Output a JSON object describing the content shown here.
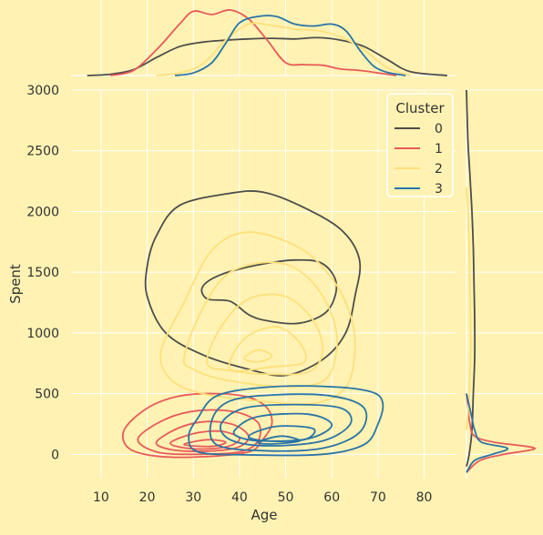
{
  "chart_data": {
    "type": "kde-jointplot",
    "xlabel": "Age",
    "ylabel": "Spent",
    "xticks": [
      10,
      20,
      30,
      40,
      50,
      60,
      70,
      80
    ],
    "yticks": [
      0,
      500,
      1000,
      1500,
      2000,
      2500,
      3000
    ],
    "xlim": [
      3.5,
      87
    ],
    "ylim": [
      -200,
      3000
    ],
    "grid": true,
    "legend": {
      "title": "Cluster",
      "placement": "top-right",
      "entries": [
        "0",
        "1",
        "2",
        "3"
      ]
    },
    "series": [
      {
        "name": "0",
        "color": "#4D4D4D",
        "contours": [
          [
            [
              22,
              1800
            ],
            [
              27,
              2050
            ],
            [
              38,
              2150
            ],
            [
              45,
              2160
            ],
            [
              53,
              2050
            ],
            [
              62,
              1850
            ],
            [
              66,
              1600
            ],
            [
              65,
              1300
            ],
            [
              63,
              1000
            ],
            [
              58,
              780
            ],
            [
              50,
              650
            ],
            [
              42,
              700
            ],
            [
              32,
              820
            ],
            [
              24,
              1000
            ],
            [
              20,
              1300
            ],
            [
              20,
              1550
            ]
          ],
          [
            [
              32,
              1380
            ],
            [
              36,
              1480
            ],
            [
              44,
              1560
            ],
            [
              52,
              1600
            ],
            [
              58,
              1570
            ],
            [
              61,
              1400
            ],
            [
              59,
              1180
            ],
            [
              53,
              1080
            ],
            [
              46,
              1100
            ],
            [
              42,
              1150
            ],
            [
              38,
              1260
            ],
            [
              33,
              1280
            ]
          ]
        ]
      },
      {
        "name": "1",
        "color": "#E85A5A",
        "contours": [
          [
            [
              15,
              200
            ],
            [
              20,
              380
            ],
            [
              27,
              480
            ],
            [
              35,
              500
            ],
            [
              42,
              470
            ],
            [
              46,
              380
            ],
            [
              47,
              250
            ],
            [
              45,
              120
            ],
            [
              42,
              20
            ],
            [
              32,
              -20
            ],
            [
              22,
              -15
            ],
            [
              16,
              50
            ]
          ],
          [
            [
              18,
              130
            ],
            [
              24,
              290
            ],
            [
              31,
              360
            ],
            [
              39,
              350
            ],
            [
              44,
              260
            ],
            [
              44,
              110
            ],
            [
              40,
              20
            ],
            [
              30,
              0
            ],
            [
              22,
              20
            ]
          ],
          [
            [
              22,
              100
            ],
            [
              27,
              220
            ],
            [
              33,
              270
            ],
            [
              39,
              240
            ],
            [
              42,
              140
            ],
            [
              39,
              50
            ],
            [
              31,
              25
            ],
            [
              25,
              40
            ]
          ],
          [
            [
              25,
              90
            ],
            [
              30,
              170
            ],
            [
              36,
              190
            ],
            [
              40,
              130
            ],
            [
              37,
              60
            ],
            [
              30,
              45
            ]
          ],
          [
            [
              28,
              80
            ],
            [
              33,
              120
            ],
            [
              37,
              100
            ],
            [
              34,
              65
            ]
          ]
        ]
      },
      {
        "name": "2",
        "color": "#FFE07A",
        "contours": [
          [
            [
              23,
              850
            ],
            [
              28,
              1250
            ],
            [
              34,
              1680
            ],
            [
              42,
              1830
            ],
            [
              53,
              1700
            ],
            [
              60,
              1450
            ],
            [
              64,
              1150
            ],
            [
              65,
              850
            ],
            [
              63,
              550
            ],
            [
              56,
              420
            ],
            [
              44,
              440
            ],
            [
              32,
              500
            ],
            [
              25,
              620
            ]
          ],
          [
            [
              28,
              800
            ],
            [
              32,
              1200
            ],
            [
              38,
              1500
            ],
            [
              48,
              1580
            ],
            [
              55,
              1450
            ],
            [
              60,
              1150
            ],
            [
              61,
              850
            ],
            [
              58,
              600
            ],
            [
              48,
              560
            ],
            [
              36,
              620
            ],
            [
              30,
              700
            ]
          ],
          [
            [
              33,
              750
            ],
            [
              36,
              1050
            ],
            [
              42,
              1280
            ],
            [
              50,
              1300
            ],
            [
              56,
              1100
            ],
            [
              58,
              850
            ],
            [
              55,
              680
            ],
            [
              46,
              660
            ],
            [
              38,
              690
            ]
          ],
          [
            [
              38,
              700
            ],
            [
              41,
              950
            ],
            [
              48,
              1050
            ],
            [
              53,
              920
            ],
            [
              54,
              760
            ],
            [
              47,
              720
            ]
          ],
          [
            [
              41,
              790
            ],
            [
              44,
              860
            ],
            [
              47,
              810
            ],
            [
              44,
              760
            ]
          ]
        ]
      },
      {
        "name": "3",
        "color": "#2874A6",
        "contours": [
          [
            [
              31,
              300
            ],
            [
              35,
              480
            ],
            [
              45,
              550
            ],
            [
              58,
              560
            ],
            [
              68,
              520
            ],
            [
              71,
              430
            ],
            [
              70,
              250
            ],
            [
              67,
              80
            ],
            [
              58,
              0
            ],
            [
              42,
              -5
            ],
            [
              31,
              20
            ],
            [
              29,
              150
            ]
          ],
          [
            [
              34,
              280
            ],
            [
              38,
              440
            ],
            [
              48,
              490
            ],
            [
              60,
              480
            ],
            [
              67,
              380
            ],
            [
              66,
              180
            ],
            [
              58,
              50
            ],
            [
              45,
              30
            ],
            [
              35,
              80
            ]
          ],
          [
            [
              36,
              250
            ],
            [
              41,
              380
            ],
            [
              52,
              410
            ],
            [
              62,
              380
            ],
            [
              64,
              250
            ],
            [
              58,
              110
            ],
            [
              46,
              70
            ],
            [
              38,
              120
            ]
          ],
          [
            [
              39,
              200
            ],
            [
              44,
              310
            ],
            [
              55,
              330
            ],
            [
              60,
              240
            ],
            [
              55,
              130
            ],
            [
              45,
              110
            ],
            [
              40,
              140
            ]
          ],
          [
            [
              42,
              150
            ],
            [
              48,
              230
            ],
            [
              56,
              210
            ],
            [
              54,
              120
            ],
            [
              46,
              110
            ]
          ],
          [
            [
              44,
              100
            ],
            [
              49,
              150
            ],
            [
              53,
              110
            ],
            [
              47,
              85
            ]
          ]
        ]
      }
    ],
    "marginal_x": [
      {
        "name": "0",
        "color": "#4D4D4D",
        "x": [
          7,
          12,
          17,
          22,
          27,
          32,
          37,
          42,
          47,
          52,
          57,
          62,
          67,
          72,
          77,
          85
        ],
        "y": [
          0.0,
          0.02,
          0.09,
          0.28,
          0.45,
          0.52,
          0.55,
          0.57,
          0.58,
          0.57,
          0.59,
          0.55,
          0.45,
          0.25,
          0.06,
          0.0
        ]
      },
      {
        "name": "1",
        "color": "#E85A5A",
        "x": [
          12,
          17,
          22,
          27,
          30,
          34,
          38,
          42,
          46,
          50,
          54,
          58,
          62,
          66,
          70,
          74
        ],
        "y": [
          0.0,
          0.08,
          0.4,
          0.8,
          1.0,
          0.95,
          1.02,
          0.88,
          0.55,
          0.2,
          0.17,
          0.16,
          0.1,
          0.08,
          0.04,
          0.0
        ]
      },
      {
        "name": "2",
        "color": "#FFE07A",
        "x": [
          22,
          27,
          32,
          37,
          42,
          47,
          52,
          57,
          62,
          67,
          72,
          77
        ],
        "y": [
          0.0,
          0.04,
          0.18,
          0.55,
          0.8,
          0.78,
          0.72,
          0.7,
          0.6,
          0.4,
          0.12,
          0.0
        ]
      },
      {
        "name": "3",
        "color": "#2874A6",
        "x": [
          26,
          30,
          34,
          37,
          40,
          44,
          48,
          52,
          56,
          60,
          63,
          66,
          69,
          72,
          76
        ],
        "y": [
          0.0,
          0.04,
          0.2,
          0.5,
          0.82,
          0.92,
          0.92,
          0.8,
          0.77,
          0.8,
          0.7,
          0.4,
          0.15,
          0.05,
          0.0
        ]
      }
    ],
    "marginal_y": [
      {
        "name": "0",
        "color": "#4D4D4D",
        "y": [
          -100,
          0,
          200,
          500,
          800,
          1100,
          1400,
          1700,
          2000,
          2300,
          2600,
          3000
        ],
        "d": [
          0.0,
          0.04,
          0.08,
          0.1,
          0.12,
          0.12,
          0.11,
          0.1,
          0.08,
          0.05,
          0.02,
          0.0
        ]
      },
      {
        "name": "1",
        "color": "#E85A5A",
        "y": [
          -150,
          -50,
          0,
          50,
          100,
          150,
          250,
          400,
          500
        ],
        "d": [
          0.0,
          0.2,
          0.55,
          1.0,
          0.4,
          0.12,
          0.05,
          0.02,
          0.0
        ]
      },
      {
        "name": "2",
        "color": "#FFE07A",
        "y": [
          200,
          500,
          800,
          1100,
          1400,
          1700,
          2000,
          2200
        ],
        "d": [
          0.0,
          0.04,
          0.06,
          0.06,
          0.05,
          0.04,
          0.02,
          0.0
        ]
      },
      {
        "name": "3",
        "color": "#2874A6",
        "y": [
          -150,
          -50,
          0,
          50,
          100,
          200,
          300,
          400,
          500
        ],
        "d": [
          0.0,
          0.12,
          0.38,
          0.6,
          0.22,
          0.12,
          0.08,
          0.04,
          0.0
        ]
      }
    ]
  }
}
